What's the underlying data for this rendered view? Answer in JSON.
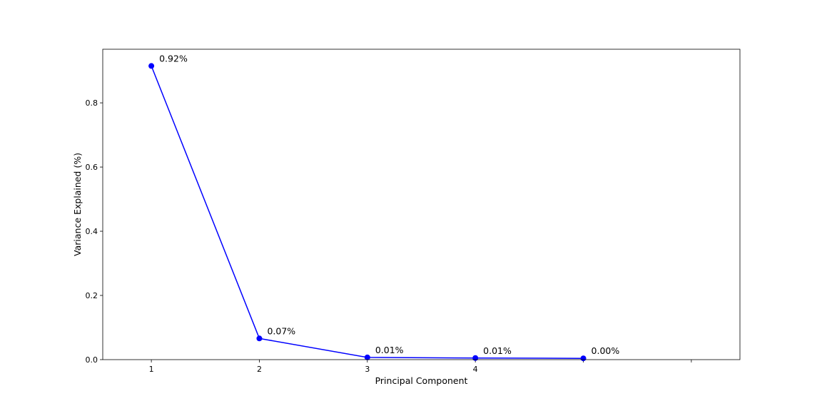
{
  "chart_data": {
    "type": "line",
    "title": "",
    "xlabel": "Principal Component",
    "ylabel": "Variance Explained (%)",
    "x": [
      1,
      2,
      3,
      4,
      5
    ],
    "values": [
      0.915,
      0.066,
      0.007,
      0.005,
      0.004
    ],
    "data_labels": [
      "0.92%",
      "0.07%",
      "0.01%",
      "0.01%",
      "0.00%"
    ],
    "x_ticks": [
      1,
      2,
      3,
      4,
      5,
      6
    ],
    "x_tick_labels": [
      "1",
      "2",
      "3",
      "4",
      "",
      ""
    ],
    "y_ticks": [
      0.0,
      0.2,
      0.4,
      0.6,
      0.8
    ],
    "y_tick_labels": [
      "0.0",
      "0.2",
      "0.4",
      "0.6",
      "0.8"
    ],
    "xlim": [
      0.55,
      6.45
    ],
    "ylim": [
      0.0,
      0.967
    ],
    "grid": false,
    "color": "#0000ff",
    "marker": "circle"
  }
}
